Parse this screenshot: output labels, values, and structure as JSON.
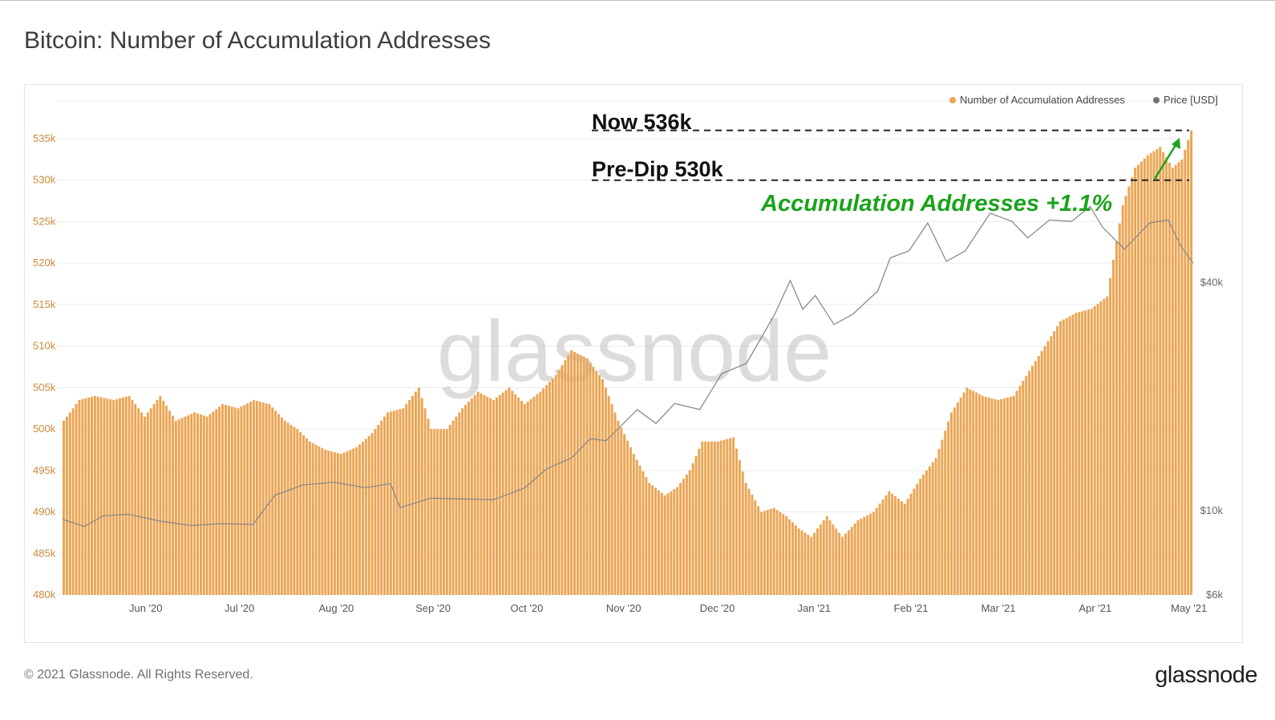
{
  "title": "Bitcoin: Number of Accumulation Addresses",
  "footer": "© 2021 Glassnode. All Rights Reserved.",
  "brand": "glassnode",
  "watermark": "glassnode",
  "colors": {
    "bars": "#eba554",
    "price": "#8a8a8a",
    "annotation": "#1aa31a",
    "grid": "#ececec"
  },
  "legend": [
    {
      "label": "Number of Accumulation Addresses",
      "color": "#eba554"
    },
    {
      "label": "Price [USD]",
      "color": "#707070"
    }
  ],
  "annotations": {
    "now": "Now 536k",
    "predip": "Pre-Dip 530k",
    "change": "Accumulation Addresses +1.1%"
  },
  "chart_data": {
    "type": "bar",
    "x_range": [
      "2020-05-20",
      "2021-05-17"
    ],
    "x_tick_labels": [
      "Jun '20",
      "Jul '20",
      "Aug '20",
      "Sep '20",
      "Oct '20",
      "Nov '20",
      "Dec '20",
      "Jan '21",
      "Feb '21",
      "Mar '21",
      "Apr '21",
      "May '21"
    ],
    "y_left": {
      "ticks": [
        "480k",
        "485k",
        "490k",
        "495k",
        "500k",
        "505k",
        "510k",
        "515k",
        "520k",
        "525k",
        "530k",
        "535k"
      ],
      "min": 480000,
      "max": 535000
    },
    "y_right": {
      "ticks": [
        "$6k",
        "$10k",
        "$40k"
      ],
      "scale": "log"
    },
    "reference_lines": [
      {
        "label": "Now",
        "value": 536000
      },
      {
        "label": "Pre-Dip",
        "value": 530000
      }
    ],
    "series": [
      {
        "name": "Number of Accumulation Addresses",
        "type": "bar",
        "points": [
          [
            "2020-05-20",
            501000
          ],
          [
            "2020-05-25",
            503500
          ],
          [
            "2020-05-30",
            504000
          ],
          [
            "2020-06-05",
            503500
          ],
          [
            "2020-06-10",
            504000
          ],
          [
            "2020-06-15",
            501500
          ],
          [
            "2020-06-20",
            504000
          ],
          [
            "2020-06-25",
            501000
          ],
          [
            "2020-07-01",
            502000
          ],
          [
            "2020-07-05",
            501500
          ],
          [
            "2020-07-10",
            503000
          ],
          [
            "2020-07-15",
            502500
          ],
          [
            "2020-07-20",
            503500
          ],
          [
            "2020-07-25",
            503000
          ],
          [
            "2020-07-30",
            501000
          ],
          [
            "2020-08-03",
            500000
          ],
          [
            "2020-08-07",
            498500
          ],
          [
            "2020-08-12",
            497500
          ],
          [
            "2020-08-17",
            497000
          ],
          [
            "2020-08-22",
            497800
          ],
          [
            "2020-08-27",
            499500
          ],
          [
            "2020-09-01",
            502000
          ],
          [
            "2020-09-06",
            502500
          ],
          [
            "2020-09-11",
            505000
          ],
          [
            "2020-09-15",
            500000
          ],
          [
            "2020-09-20",
            500000
          ],
          [
            "2020-09-25",
            502500
          ],
          [
            "2020-09-30",
            504500
          ],
          [
            "2020-10-05",
            503500
          ],
          [
            "2020-10-10",
            505000
          ],
          [
            "2020-10-15",
            503000
          ],
          [
            "2020-10-20",
            504500
          ],
          [
            "2020-10-25",
            506500
          ],
          [
            "2020-10-30",
            509500
          ],
          [
            "2020-11-04",
            508500
          ],
          [
            "2020-11-09",
            506000
          ],
          [
            "2020-11-14",
            501000
          ],
          [
            "2020-11-19",
            497000
          ],
          [
            "2020-11-24",
            493500
          ],
          [
            "2020-11-29",
            492000
          ],
          [
            "2020-12-03",
            493000
          ],
          [
            "2020-12-07",
            495000
          ],
          [
            "2020-12-11",
            498500
          ],
          [
            "2020-12-16",
            498500
          ],
          [
            "2020-12-21",
            499000
          ],
          [
            "2020-12-25",
            493500
          ],
          [
            "2020-12-30",
            490000
          ],
          [
            "2021-01-03",
            490500
          ],
          [
            "2021-01-07",
            489500
          ],
          [
            "2021-01-11",
            488000
          ],
          [
            "2021-01-15",
            487000
          ],
          [
            "2021-01-20",
            489500
          ],
          [
            "2021-01-25",
            487000
          ],
          [
            "2021-01-30",
            489000
          ],
          [
            "2021-02-04",
            490000
          ],
          [
            "2021-02-09",
            492500
          ],
          [
            "2021-02-14",
            491000
          ],
          [
            "2021-02-19",
            494000
          ],
          [
            "2021-02-24",
            496500
          ],
          [
            "2021-03-01",
            502000
          ],
          [
            "2021-03-06",
            505000
          ],
          [
            "2021-03-11",
            504000
          ],
          [
            "2021-03-16",
            503500
          ],
          [
            "2021-03-21",
            504000
          ],
          [
            "2021-03-26",
            507000
          ],
          [
            "2021-03-31",
            510000
          ],
          [
            "2021-04-05",
            513000
          ],
          [
            "2021-04-10",
            514000
          ],
          [
            "2021-04-15",
            514500
          ],
          [
            "2021-04-20",
            516000
          ],
          [
            "2021-04-25",
            527000
          ],
          [
            "2021-04-29",
            531500
          ],
          [
            "2021-05-03",
            533000
          ],
          [
            "2021-05-07",
            534000
          ],
          [
            "2021-05-11",
            531500
          ],
          [
            "2021-05-14",
            532500
          ],
          [
            "2021-05-17",
            536000
          ]
        ]
      },
      {
        "name": "Price [USD]",
        "type": "line",
        "points": [
          [
            "2020-05-20",
            9500
          ],
          [
            "2020-05-27",
            9100
          ],
          [
            "2020-06-02",
            9700
          ],
          [
            "2020-06-10",
            9800
          ],
          [
            "2020-06-20",
            9400
          ],
          [
            "2020-06-30",
            9150
          ],
          [
            "2020-07-10",
            9250
          ],
          [
            "2020-07-20",
            9200
          ],
          [
            "2020-07-27",
            11000
          ],
          [
            "2020-08-05",
            11700
          ],
          [
            "2020-08-15",
            11900
          ],
          [
            "2020-08-25",
            11500
          ],
          [
            "2020-09-02",
            11800
          ],
          [
            "2020-09-05",
            10200
          ],
          [
            "2020-09-15",
            10800
          ],
          [
            "2020-09-25",
            10750
          ],
          [
            "2020-10-05",
            10700
          ],
          [
            "2020-10-15",
            11500
          ],
          [
            "2020-10-22",
            12900
          ],
          [
            "2020-10-30",
            13800
          ],
          [
            "2020-11-05",
            15500
          ],
          [
            "2020-11-10",
            15300
          ],
          [
            "2020-11-20",
            18500
          ],
          [
            "2020-11-26",
            17000
          ],
          [
            "2020-12-02",
            19200
          ],
          [
            "2020-12-10",
            18500
          ],
          [
            "2020-12-17",
            23000
          ],
          [
            "2020-12-25",
            24500
          ],
          [
            "2021-01-03",
            33000
          ],
          [
            "2021-01-08",
            40500
          ],
          [
            "2021-01-12",
            34000
          ],
          [
            "2021-01-16",
            37000
          ],
          [
            "2021-01-22",
            31000
          ],
          [
            "2021-01-28",
            33000
          ],
          [
            "2021-02-05",
            38000
          ],
          [
            "2021-02-09",
            46500
          ],
          [
            "2021-02-15",
            48500
          ],
          [
            "2021-02-21",
            57500
          ],
          [
            "2021-02-27",
            45500
          ],
          [
            "2021-03-05",
            48500
          ],
          [
            "2021-03-13",
            61000
          ],
          [
            "2021-03-20",
            58000
          ],
          [
            "2021-03-25",
            52500
          ],
          [
            "2021-04-01",
            58500
          ],
          [
            "2021-04-08",
            58000
          ],
          [
            "2021-04-14",
            63500
          ],
          [
            "2021-04-18",
            56000
          ],
          [
            "2021-04-25",
            49000
          ],
          [
            "2021-05-03",
            57500
          ],
          [
            "2021-05-09",
            58500
          ],
          [
            "2021-05-13",
            50000
          ],
          [
            "2021-05-17",
            45000
          ]
        ]
      }
    ]
  }
}
